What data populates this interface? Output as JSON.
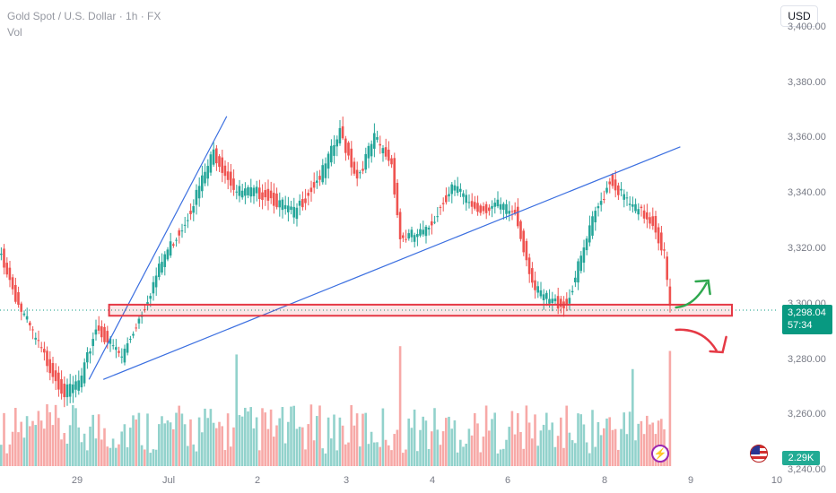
{
  "header": {
    "title": "Gold Spot / U.S. Dollar · 1h · FX",
    "volume_label": "Vol"
  },
  "currency_button": "USD",
  "price_badge": {
    "price": "3,298.04",
    "countdown": "57:34"
  },
  "volume_badge": "2.29K",
  "colors": {
    "up": "#26a69a",
    "down": "#ef5350",
    "trendline": "#3b6fe0",
    "support": "#e53945",
    "accent_green": "#2fa84f",
    "accent_red": "#e53945"
  },
  "icons": {
    "event": "lightning-icon",
    "country": "us-flag-icon"
  },
  "chart_data": {
    "type": "candlestick",
    "symbol": "Gold Spot / U.S. Dollar",
    "interval": "1h",
    "y_axis": {
      "range": [
        3232,
        3410
      ],
      "ticks": [
        "3,400.00",
        "3,380.00",
        "3,360.00",
        "3,340.00",
        "3,320.00",
        "3,300.00",
        "3,280.00",
        "3,260.00",
        "3,240.00"
      ]
    },
    "x_axis": {
      "ticks": [
        "29",
        "Jul",
        "2",
        "3",
        "4",
        "6",
        "8",
        "9",
        "10"
      ]
    },
    "last_price": 3298.04,
    "volume_last": "2.29K",
    "price_path": [
      {
        "i": 0,
        "p": 3318
      },
      {
        "i": 6,
        "p": 3300
      },
      {
        "i": 14,
        "p": 3283
      },
      {
        "i": 22,
        "p": 3268
      },
      {
        "i": 28,
        "p": 3273
      },
      {
        "i": 33,
        "p": 3292
      },
      {
        "i": 42,
        "p": 3281
      },
      {
        "i": 50,
        "p": 3300
      },
      {
        "i": 57,
        "p": 3318
      },
      {
        "i": 64,
        "p": 3330
      },
      {
        "i": 74,
        "p": 3355
      },
      {
        "i": 82,
        "p": 3341
      },
      {
        "i": 92,
        "p": 3340
      },
      {
        "i": 102,
        "p": 3333
      },
      {
        "i": 112,
        "p": 3348
      },
      {
        "i": 118,
        "p": 3362
      },
      {
        "i": 124,
        "p": 3346
      },
      {
        "i": 130,
        "p": 3360
      },
      {
        "i": 136,
        "p": 3351
      },
      {
        "i": 139,
        "p": 3324
      },
      {
        "i": 148,
        "p": 3326
      },
      {
        "i": 157,
        "p": 3343
      },
      {
        "i": 166,
        "p": 3334
      },
      {
        "i": 172,
        "p": 3336
      },
      {
        "i": 179,
        "p": 3333
      },
      {
        "i": 186,
        "p": 3305
      },
      {
        "i": 192,
        "p": 3301
      },
      {
        "i": 197,
        "p": 3300
      },
      {
        "i": 206,
        "p": 3330
      },
      {
        "i": 212,
        "p": 3345
      },
      {
        "i": 220,
        "p": 3335
      },
      {
        "i": 227,
        "p": 3330
      },
      {
        "i": 231,
        "p": 3318
      },
      {
        "i": 233,
        "p": 3298
      }
    ],
    "trendlines": [
      {
        "from": {
          "i": 31,
          "p": 3273
        },
        "to": {
          "i": 79,
          "p": 3368
        }
      },
      {
        "from": {
          "i": 36,
          "p": 3273
        },
        "to": {
          "i": 237,
          "p": 3357
        }
      }
    ],
    "support_zone": {
      "from_i": 38,
      "to_i": 255,
      "top": 3300,
      "bottom": 3296
    },
    "scenario_arrows": [
      "up",
      "down"
    ]
  }
}
